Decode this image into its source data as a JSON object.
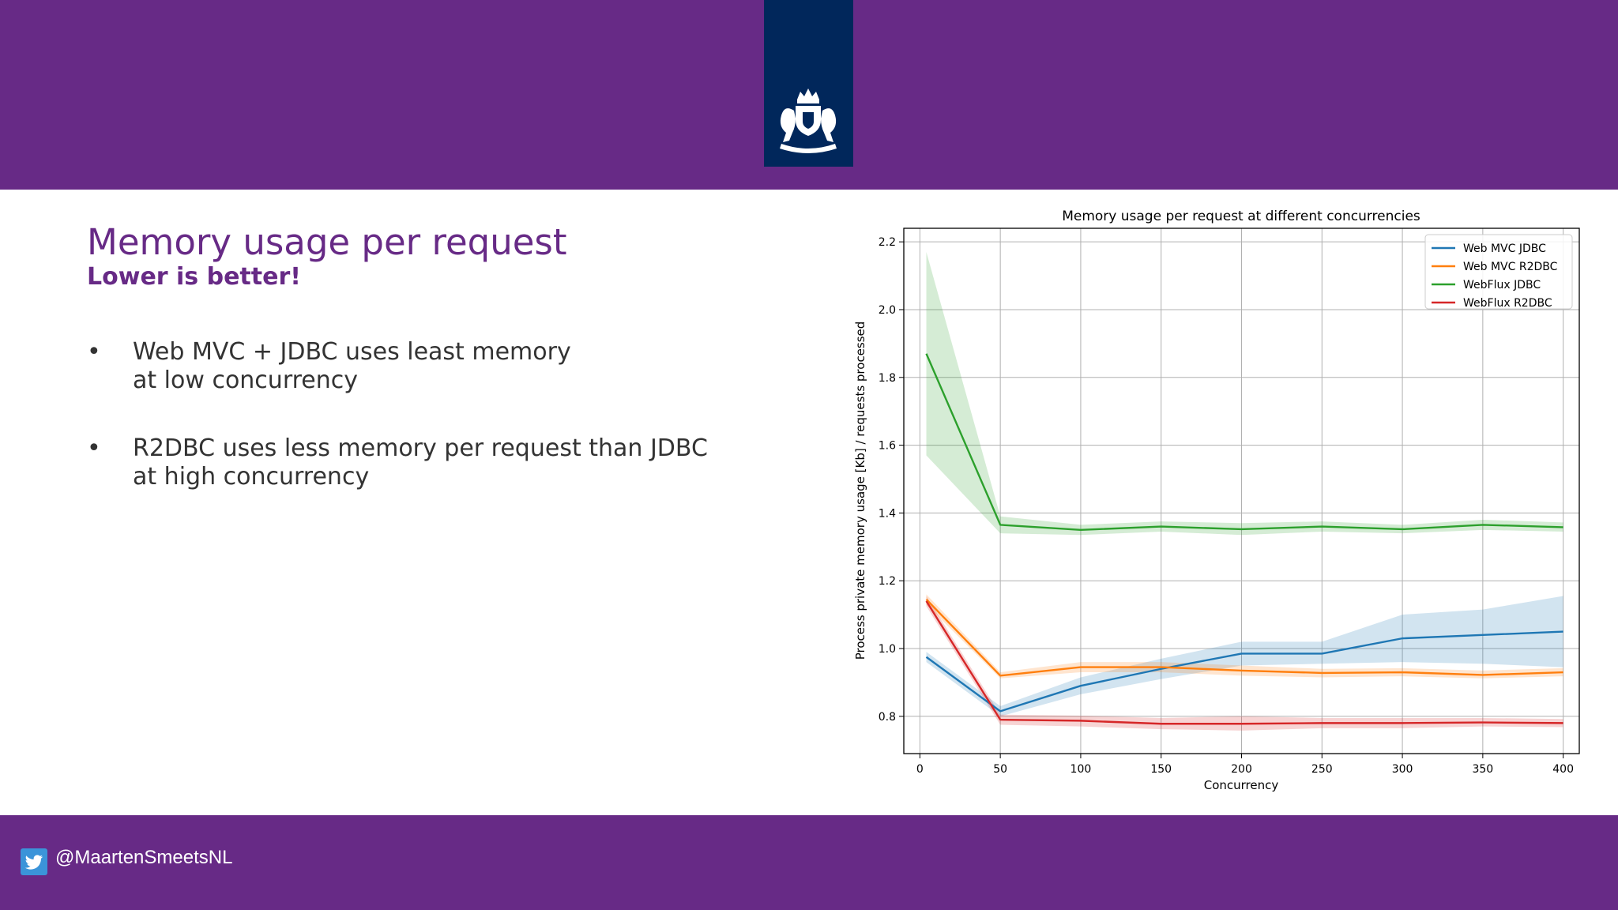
{
  "slide": {
    "title": "Memory usage per request",
    "subtitle": "Lower is better!",
    "bullets": [
      {
        "marker": "•",
        "lines": [
          "Web MVC + JDBC uses least memory",
          "at low concurrency"
        ]
      },
      {
        "marker": "•",
        "lines": [
          "R2DBC uses less memory per request than JDBC",
          "at high concurrency"
        ]
      }
    ]
  },
  "footer": {
    "twitter_handle": "@MaartenSmeetsNL",
    "icon": "twitter-bird-icon"
  },
  "header": {
    "logo": "rijksoverheid-coat-of-arms-icon"
  },
  "colors": {
    "band": "#672a86",
    "logo_bg": "#01275b",
    "accent_text": "#672a86"
  },
  "chart_data": {
    "type": "line",
    "title": "Memory usage per request at different concurrencies",
    "xlabel": "Concurrency",
    "ylabel": "Process private memory usage [Kb] / requests processed",
    "xlim": [
      -10,
      410
    ],
    "ylim": [
      0.69,
      2.24
    ],
    "xticks": [
      0,
      50,
      100,
      150,
      200,
      250,
      300,
      350,
      400
    ],
    "yticks": [
      0.8,
      1.0,
      1.2,
      1.4,
      1.6,
      1.8,
      2.0,
      2.2
    ],
    "x": [
      4,
      50,
      100,
      150,
      200,
      250,
      300,
      350,
      400
    ],
    "grid": true,
    "legend_position": "top-right",
    "series": [
      {
        "name": "Web MVC JDBC",
        "color": "#1f77b4",
        "values": [
          0.975,
          0.815,
          0.89,
          0.94,
          0.985,
          0.985,
          1.03,
          1.04,
          1.05
        ],
        "lower": [
          0.96,
          0.8,
          0.865,
          0.91,
          0.95,
          0.955,
          0.96,
          0.955,
          0.945
        ],
        "upper": [
          0.99,
          0.83,
          0.915,
          0.97,
          1.02,
          1.02,
          1.1,
          1.115,
          1.155
        ]
      },
      {
        "name": "Web MVC R2DBC",
        "color": "#ff7f0e",
        "values": [
          1.145,
          0.92,
          0.945,
          0.945,
          0.935,
          0.928,
          0.93,
          0.922,
          0.93
        ],
        "lower": [
          1.13,
          0.912,
          0.93,
          0.93,
          0.92,
          0.915,
          0.918,
          0.912,
          0.918
        ],
        "upper": [
          1.16,
          0.93,
          0.96,
          0.96,
          0.95,
          0.94,
          0.942,
          0.935,
          0.942
        ]
      },
      {
        "name": "WebFlux JDBC",
        "color": "#2ca02c",
        "values": [
          1.87,
          1.365,
          1.35,
          1.36,
          1.352,
          1.36,
          1.352,
          1.365,
          1.358
        ],
        "lower": [
          1.57,
          1.34,
          1.335,
          1.345,
          1.335,
          1.345,
          1.34,
          1.35,
          1.345
        ],
        "upper": [
          2.17,
          1.39,
          1.365,
          1.375,
          1.37,
          1.375,
          1.365,
          1.38,
          1.372
        ]
      },
      {
        "name": "WebFlux R2DBC",
        "color": "#d62728",
        "values": [
          1.14,
          0.79,
          0.787,
          0.778,
          0.778,
          0.78,
          0.78,
          0.782,
          0.78
        ],
        "lower": [
          1.125,
          0.775,
          0.77,
          0.762,
          0.758,
          0.765,
          0.765,
          0.77,
          0.768
        ],
        "upper": [
          1.155,
          0.805,
          0.802,
          0.795,
          0.8,
          0.795,
          0.795,
          0.795,
          0.792
        ]
      }
    ]
  }
}
